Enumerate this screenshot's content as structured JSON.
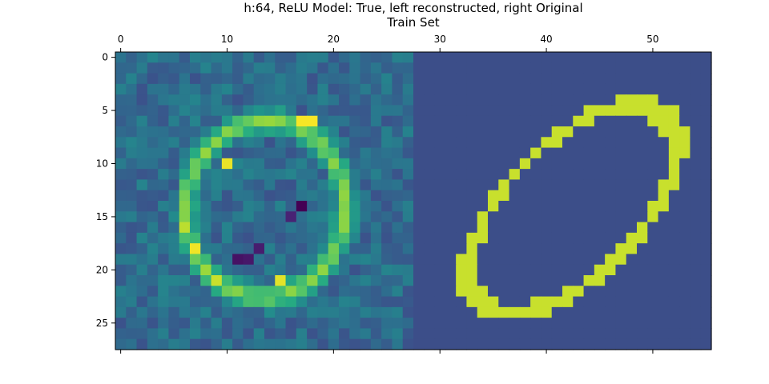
{
  "chart_data": {
    "type": "heatmap",
    "title": "h:64, ReLU Model: True, left reconstructed, right Original",
    "subtitle": "Train Set",
    "x_ticks": [
      0,
      10,
      20,
      30,
      40,
      50
    ],
    "y_ticks": [
      0,
      5,
      10,
      15,
      20,
      25
    ],
    "x_range": [
      -0.5,
      55.5
    ],
    "y_range": [
      -0.5,
      27.5
    ],
    "x_axis_position": "top",
    "colormap": "viridis",
    "grid": false,
    "image_width": 56,
    "image_height": 28,
    "background_value": 0.24,
    "panels": [
      {
        "name": "left reconstructed",
        "x_offset": 0,
        "noise_base": 0.35,
        "noise_amplitude": 0.1,
        "ellipse": {
          "center_x": 13.6,
          "center_y": 14.3,
          "radius_x": 7.5,
          "radius_y": 8.3,
          "rotation_deg": 8,
          "ring_width": 1.5,
          "intensity": 0.85
        },
        "hotspots": [
          {
            "x": 10,
            "y": 10,
            "value": 0.97
          },
          {
            "x": 17,
            "y": 6,
            "value": 0.99
          },
          {
            "x": 18,
            "y": 6,
            "value": 0.99
          },
          {
            "x": 7,
            "y": 18,
            "value": 0.98
          },
          {
            "x": 6,
            "y": 16,
            "value": 0.9
          },
          {
            "x": 15,
            "y": 21,
            "value": 0.96
          },
          {
            "x": 9,
            "y": 21,
            "value": 0.92
          }
        ],
        "coldspots": [
          {
            "x": 17,
            "y": 14,
            "value": 0.0
          },
          {
            "x": 11,
            "y": 19,
            "value": 0.06
          },
          {
            "x": 12,
            "y": 19,
            "value": 0.08
          },
          {
            "x": 13,
            "y": 18,
            "value": 0.1
          },
          {
            "x": 16,
            "y": 15,
            "value": 0.12
          }
        ]
      },
      {
        "name": "right Original",
        "x_offset": 28,
        "noise_base": 0.0,
        "noise_amplitude": 0.0,
        "ellipse": {
          "center_x": 14.5,
          "center_y": 14.3,
          "radius_x": 12.4,
          "radius_y": 6.2,
          "rotation_deg": -45,
          "ring_width": 1.3,
          "intensity": 0.92
        },
        "hotspots": [
          {
            "x": 21,
            "y": 4,
            "value": 0.92
          },
          {
            "x": 22,
            "y": 4,
            "value": 0.92
          },
          {
            "x": 20,
            "y": 5,
            "value": 0.92
          },
          {
            "x": 22,
            "y": 6,
            "value": 0.92
          },
          {
            "x": 23,
            "y": 7,
            "value": 0.92
          }
        ],
        "coldspots": []
      }
    ]
  }
}
